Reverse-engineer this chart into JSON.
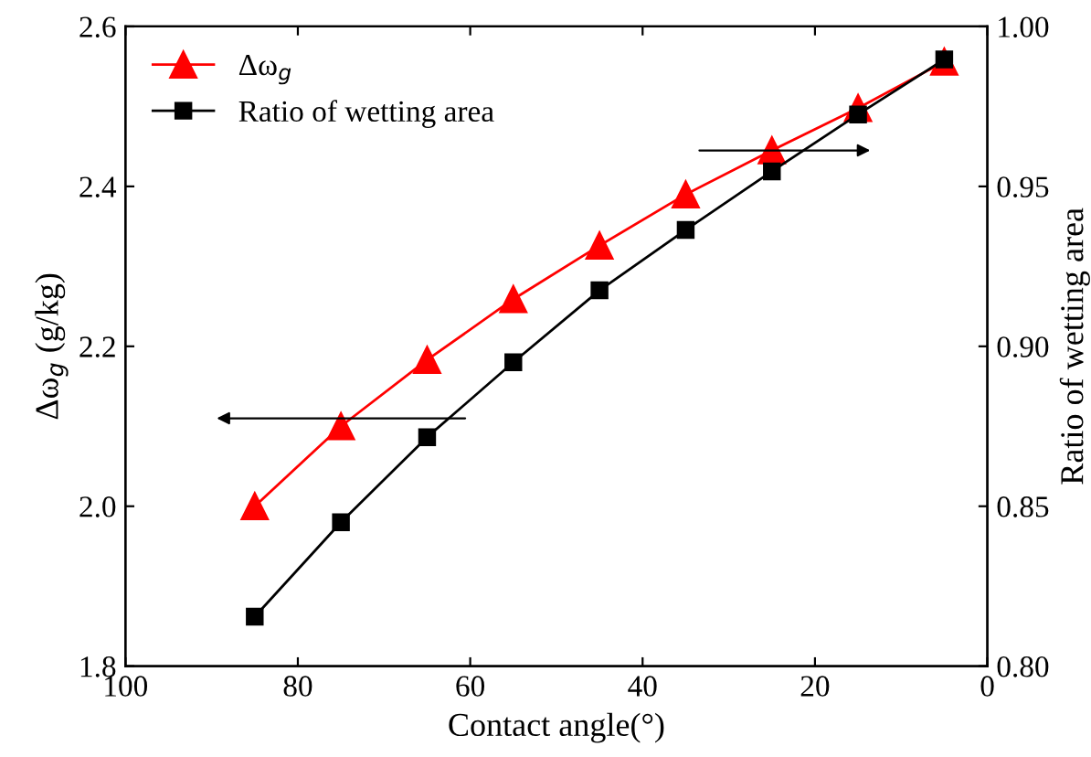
{
  "chart_data": {
    "type": "line",
    "xlabel": "Contact angle(°)",
    "ylabel": "Δω$_{g}$ (g/kg)",
    "y2label": "Ratio of wetting area",
    "x": [
      85,
      75,
      65,
      55,
      45,
      35,
      25,
      15,
      5
    ],
    "series": [
      {
        "name": "Δω$_{g}$",
        "color": "#ff0000",
        "marker": "triangle",
        "values": [
          2.0,
          2.1,
          2.183,
          2.259,
          2.326,
          2.39,
          2.445,
          2.498,
          2.556
        ]
      },
      {
        "name": "Ratio of wetting area",
        "color": "#000000",
        "marker": "square",
        "axis": "y2",
        "values": [
          0.8155,
          0.845,
          0.8716,
          0.895,
          0.9175,
          0.9364,
          0.9547,
          0.9725,
          0.9897
        ]
      }
    ],
    "xlim": [
      100,
      0
    ],
    "xticks": [
      100,
      80,
      60,
      40,
      20,
      0
    ],
    "ylim": [
      1.8,
      2.6
    ],
    "yticks": [
      {
        "value": 1.8,
        "label": "1.8"
      },
      {
        "value": 2.0,
        "label": "2.0"
      },
      {
        "value": 2.2,
        "label": "2.2"
      },
      {
        "value": 2.4,
        "label": "2.4"
      },
      {
        "value": 2.6,
        "label": "2.6"
      }
    ],
    "y2lim": [
      0.8,
      1.0
    ],
    "y2ticks": [
      {
        "value": 0.8,
        "label": "0.80"
      },
      {
        "value": 0.85,
        "label": "0.85"
      },
      {
        "value": 0.9,
        "label": "0.90"
      },
      {
        "value": 0.95,
        "label": "0.95"
      },
      {
        "value": 1.0,
        "label": "1.00"
      }
    ],
    "legend": "top left",
    "grid": false
  }
}
